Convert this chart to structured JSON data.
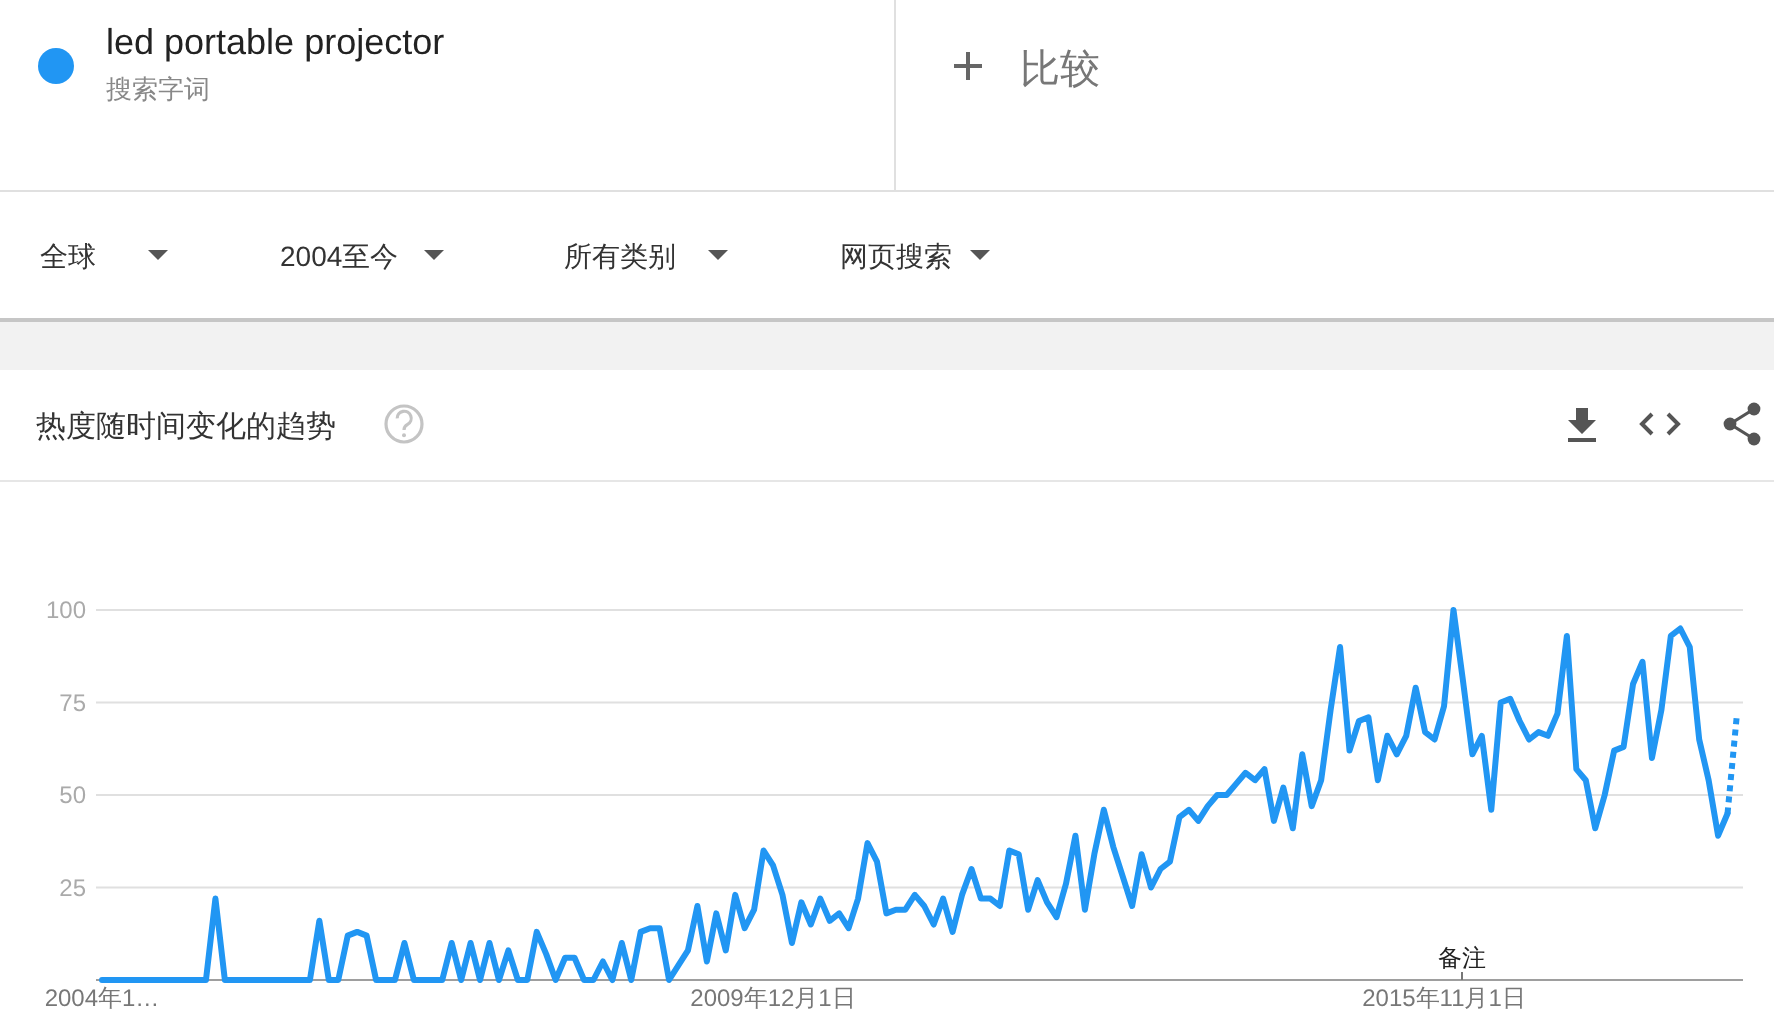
{
  "chart_data": {
    "type": "line",
    "title": "热度随时间变化的趋势",
    "annotations": [
      "搜索字词",
      "比较",
      "全球",
      "2004至今",
      "所有类别",
      "网页搜索",
      "备注"
    ],
    "series": [
      {
        "name": "led portable projector",
        "color": "#2196f3",
        "x": [
          "2004-01",
          "2004-12",
          "2005-01",
          "2005-02",
          "2005-11",
          "2005-12",
          "2006-01",
          "2006-02",
          "2006-03",
          "2006-04",
          "2006-05",
          "2006-06",
          "2006-07",
          "2006-08",
          "2006-09",
          "2006-10",
          "2006-11",
          "2006-12",
          "2007-01",
          "2007-02",
          "2007-03",
          "2007-04",
          "2007-05",
          "2007-06",
          "2007-07",
          "2007-08",
          "2007-09",
          "2007-10",
          "2007-11",
          "2007-12",
          "2008-01",
          "2008-02",
          "2008-03",
          "2008-04",
          "2008-05",
          "2008-06",
          "2008-07",
          "2008-08",
          "2008-09",
          "2008-10",
          "2008-11",
          "2008-12",
          "2009-01",
          "2009-02",
          "2009-03",
          "2009-04",
          "2009-05",
          "2009-06",
          "2009-07",
          "2009-08",
          "2009-09",
          "2009-10",
          "2009-11",
          "2009-12",
          "2010-01",
          "2010-02",
          "2010-03",
          "2010-04",
          "2010-05",
          "2010-06",
          "2010-07",
          "2010-08",
          "2010-09",
          "2010-10",
          "2010-11",
          "2010-12",
          "2011-01",
          "2011-02",
          "2011-03",
          "2011-04",
          "2011-05",
          "2011-06",
          "2011-07",
          "2011-08",
          "2011-09",
          "2011-10",
          "2011-11",
          "2011-12",
          "2012-01",
          "2012-02",
          "2012-03",
          "2012-04",
          "2012-05",
          "2012-06",
          "2012-07",
          "2012-08",
          "2012-09",
          "2012-10",
          "2012-11",
          "2012-12",
          "2013-01",
          "2013-02",
          "2013-03",
          "2013-04",
          "2013-05",
          "2013-06",
          "2013-07",
          "2013-08",
          "2013-09",
          "2013-10",
          "2013-11",
          "2013-12",
          "2014-01",
          "2014-02",
          "2014-03",
          "2014-04",
          "2014-05",
          "2014-06",
          "2014-07",
          "2014-08",
          "2014-09",
          "2014-10",
          "2014-11",
          "2014-12",
          "2015-01",
          "2015-02",
          "2015-03",
          "2015-04",
          "2015-05",
          "2015-06",
          "2015-07",
          "2015-08",
          "2015-09",
          "2015-10",
          "2015-11",
          "2015-12",
          "2016-01",
          "2016-02",
          "2016-03",
          "2016-04",
          "2016-05",
          "2016-06",
          "2016-07",
          "2016-08",
          "2016-09",
          "2016-10",
          "2016-11",
          "2016-12",
          "2017-01",
          "2017-02",
          "2017-03",
          "2017-04",
          "2017-05",
          "2017-06",
          "2017-07",
          "2017-08",
          "2017-09",
          "2017-10",
          "2017-11",
          "2017-12",
          "2018-01",
          "2018-02",
          "2018-03",
          "2018-04",
          "2018-05"
        ],
        "values": [
          0,
          0,
          22,
          0,
          0,
          16,
          0,
          0,
          12,
          13,
          12,
          0,
          0,
          0,
          10,
          0,
          0,
          0,
          0,
          10,
          0,
          10,
          0,
          10,
          0,
          8,
          0,
          0,
          13,
          7,
          0,
          6,
          6,
          0,
          0,
          5,
          0,
          10,
          0,
          13,
          14,
          14,
          0,
          4,
          8,
          20,
          5,
          18,
          8,
          23,
          14,
          19,
          35,
          31,
          23,
          10,
          21,
          15,
          22,
          16,
          18,
          14,
          22,
          37,
          32,
          18,
          19,
          19,
          23,
          20,
          15,
          22,
          13,
          23,
          30,
          22,
          22,
          20,
          35,
          34,
          19,
          27,
          21,
          17,
          26,
          39,
          19,
          34,
          46,
          36,
          28,
          20,
          34,
          25,
          30,
          32,
          44,
          46,
          43,
          47,
          50,
          50,
          53,
          56,
          54,
          57,
          43,
          52,
          41,
          61,
          47,
          54,
          73,
          90,
          62,
          70,
          71,
          54,
          66,
          61,
          66,
          79,
          67,
          65,
          74,
          100,
          81,
          61,
          66,
          46,
          75,
          76,
          70,
          65,
          67,
          66,
          72,
          93,
          57,
          54,
          41,
          50,
          62,
          63,
          80,
          86,
          60,
          73,
          93,
          95,
          90,
          65,
          54,
          39,
          45
        ]
      },
      {
        "color": "#2196f3",
        "x": [
          "2018-05",
          "2018-06"
        ],
        "values": [
          45,
          72
        ],
        "line_style": "dotted"
      }
    ],
    "xlim": [
      "2004-01",
      "2018-06"
    ],
    "xticks": [
      {
        "value": "2004-01-01",
        "label": "2004年1…"
      },
      {
        "value": "2009-12-01",
        "label": "2009年12月1日"
      },
      {
        "value": "2015-11-01",
        "label": "2015年11月1日"
      }
    ],
    "ylim": [
      0,
      100
    ],
    "yticks": [
      25,
      50,
      75,
      100
    ],
    "grid": "y",
    "legend": "top left",
    "line_style": "solid"
  }
}
